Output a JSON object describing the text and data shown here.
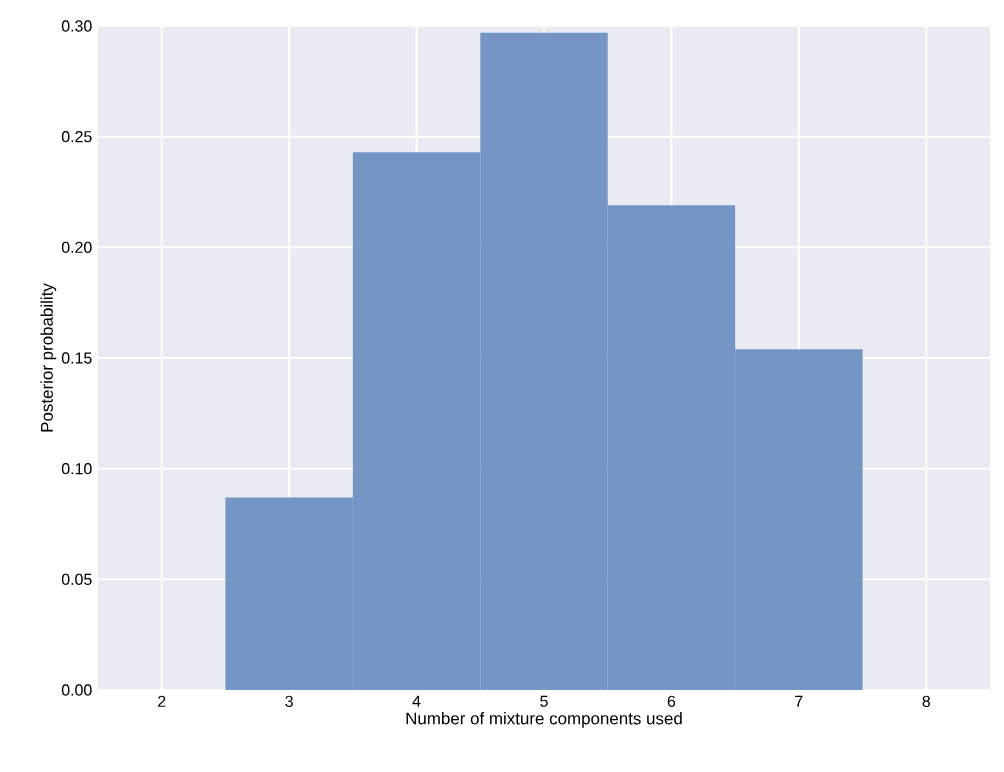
{
  "chart_data": {
    "type": "histogram",
    "xlabel": "Number of mixture components used",
    "ylabel": "Posterior probability",
    "bins": [
      2.5,
      3.5,
      4.5,
      5.5,
      6.5,
      7.5
    ],
    "values": [
      0.087,
      0.243,
      0.297,
      0.219,
      0.154
    ],
    "color": "#7595c5",
    "xlim": [
      1.5,
      8.5
    ],
    "ylim": [
      0,
      0.3
    ],
    "xticks": [
      2,
      3,
      4,
      5,
      6,
      7,
      8
    ],
    "yticks": [
      {
        "value": 0,
        "label": "0.00"
      },
      {
        "value": 0.05,
        "label": "0.05"
      },
      {
        "value": 0.1,
        "label": "0.10"
      },
      {
        "value": 0.15,
        "label": "0.15"
      },
      {
        "value": 0.2,
        "label": "0.20"
      },
      {
        "value": 0.25,
        "label": "0.25"
      },
      {
        "value": 0.3,
        "label": "0.30"
      }
    ],
    "grid": true
  }
}
